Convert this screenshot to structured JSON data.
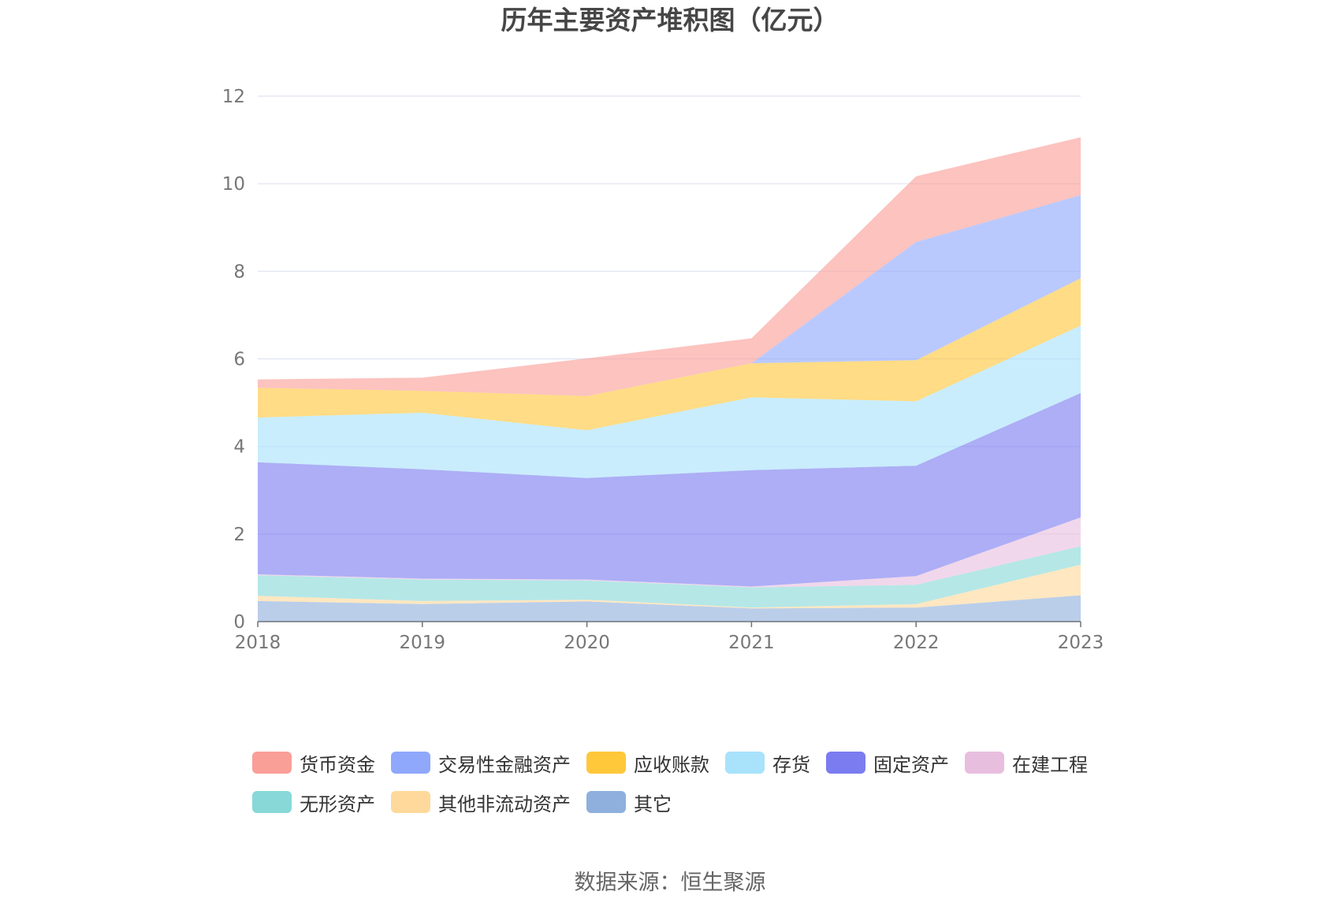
{
  "chart_data": {
    "type": "area",
    "stacked": true,
    "title": "历年主要资产堆积图（亿元）",
    "x": [
      "2018",
      "2019",
      "2020",
      "2021",
      "2022",
      "2023"
    ],
    "ylim": [
      0,
      12
    ],
    "yticks": [
      0,
      2,
      4,
      6,
      8,
      10,
      12
    ],
    "grid": true,
    "legend_position": "bottom",
    "series": [
      {
        "name": "其它",
        "color": "#8fb0dd",
        "values": [
          0.47,
          0.4,
          0.46,
          0.3,
          0.32,
          0.6
        ]
      },
      {
        "name": "其他非流动资产",
        "color": "#ffd99b",
        "values": [
          0.12,
          0.07,
          0.04,
          0.02,
          0.08,
          0.7
        ]
      },
      {
        "name": "无形资产",
        "color": "#88d8d8",
        "values": [
          0.47,
          0.49,
          0.44,
          0.46,
          0.44,
          0.42
        ]
      },
      {
        "name": "在建工程",
        "color": "#e8bedf",
        "values": [
          0.02,
          0.02,
          0.02,
          0.02,
          0.2,
          0.66
        ]
      },
      {
        "name": "固定资产",
        "color": "#7b7cf0",
        "values": [
          2.56,
          2.5,
          2.32,
          2.66,
          2.52,
          2.84
        ]
      },
      {
        "name": "存货",
        "color": "#a8e2fb",
        "values": [
          1.02,
          1.29,
          1.09,
          1.66,
          1.47,
          1.54
        ]
      },
      {
        "name": "应收账款",
        "color": "#ffc73a",
        "values": [
          0.68,
          0.5,
          0.78,
          0.78,
          0.94,
          1.08
        ]
      },
      {
        "name": "交易性金融资产",
        "color": "#8fa8fc",
        "values": [
          0.0,
          0.0,
          0.0,
          0.0,
          2.7,
          1.9
        ]
      },
      {
        "name": "货币资金",
        "color": "#fa9e98",
        "values": [
          0.19,
          0.3,
          0.86,
          0.57,
          1.5,
          1.32
        ]
      }
    ]
  },
  "legend": [
    [
      "货币资金",
      "交易性金融资产",
      "应收账款",
      "存货",
      "固定资产",
      "在建工程"
    ],
    [
      "无形资产",
      "其他非流动资产",
      "其它"
    ]
  ],
  "source": "数据来源：恒生聚源"
}
